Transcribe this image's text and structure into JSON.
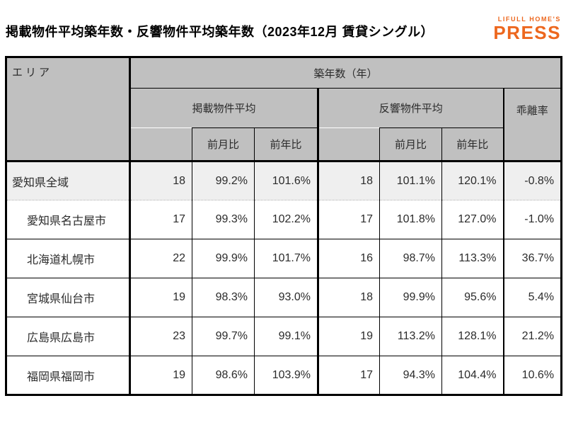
{
  "page_title": "掲載物件平均築年数・反響物件平均築年数（2023年12月 賃貸シングル）",
  "logo": {
    "line1": "LIFULL HOME'S",
    "line2": "PRESS",
    "color": "#ED671E"
  },
  "colors": {
    "header_bg": "#C0C0C0",
    "highlight_row_bg": "#EFEFEF",
    "border": "#000000",
    "text": "#2B2B2B"
  },
  "chart_data": {
    "type": "table",
    "title": "掲載物件平均築年数・反響物件平均築年数（2023年12月 賃貸シングル）",
    "header": {
      "area": "エリア",
      "age_years": "築年数（年）",
      "listed_avg": "掲載物件平均",
      "response_avg": "反響物件平均",
      "deviation_rate": "乖離率",
      "mom": "前月比",
      "yoy": "前年比"
    },
    "columns": [
      "エリア",
      "掲載物件平均",
      "掲載物件平均 前月比",
      "掲載物件平均 前年比",
      "反響物件平均",
      "反響物件平均 前月比",
      "反響物件平均 前年比",
      "乖離率"
    ],
    "rows": [
      {
        "area": "愛知県全域",
        "indent": false,
        "highlight": true,
        "values": [
          "18",
          "99.2%",
          "101.6%",
          "18",
          "101.1%",
          "120.1%",
          "-0.8%"
        ]
      },
      {
        "area": "愛知県名古屋市",
        "indent": true,
        "highlight": false,
        "values": [
          "17",
          "99.3%",
          "102.2%",
          "17",
          "101.8%",
          "127.0%",
          "-1.0%"
        ]
      },
      {
        "area": "北海道札幌市",
        "indent": true,
        "highlight": false,
        "values": [
          "22",
          "99.9%",
          "101.7%",
          "16",
          "98.7%",
          "113.3%",
          "36.7%"
        ]
      },
      {
        "area": "宮城県仙台市",
        "indent": true,
        "highlight": false,
        "values": [
          "19",
          "98.3%",
          "93.0%",
          "18",
          "99.9%",
          "95.6%",
          "5.4%"
        ]
      },
      {
        "area": "広島県広島市",
        "indent": true,
        "highlight": false,
        "values": [
          "23",
          "99.7%",
          "99.1%",
          "19",
          "113.2%",
          "128.1%",
          "21.2%"
        ]
      },
      {
        "area": "福岡県福岡市",
        "indent": true,
        "highlight": false,
        "values": [
          "19",
          "98.6%",
          "103.9%",
          "17",
          "94.3%",
          "104.4%",
          "10.6%"
        ]
      }
    ]
  }
}
